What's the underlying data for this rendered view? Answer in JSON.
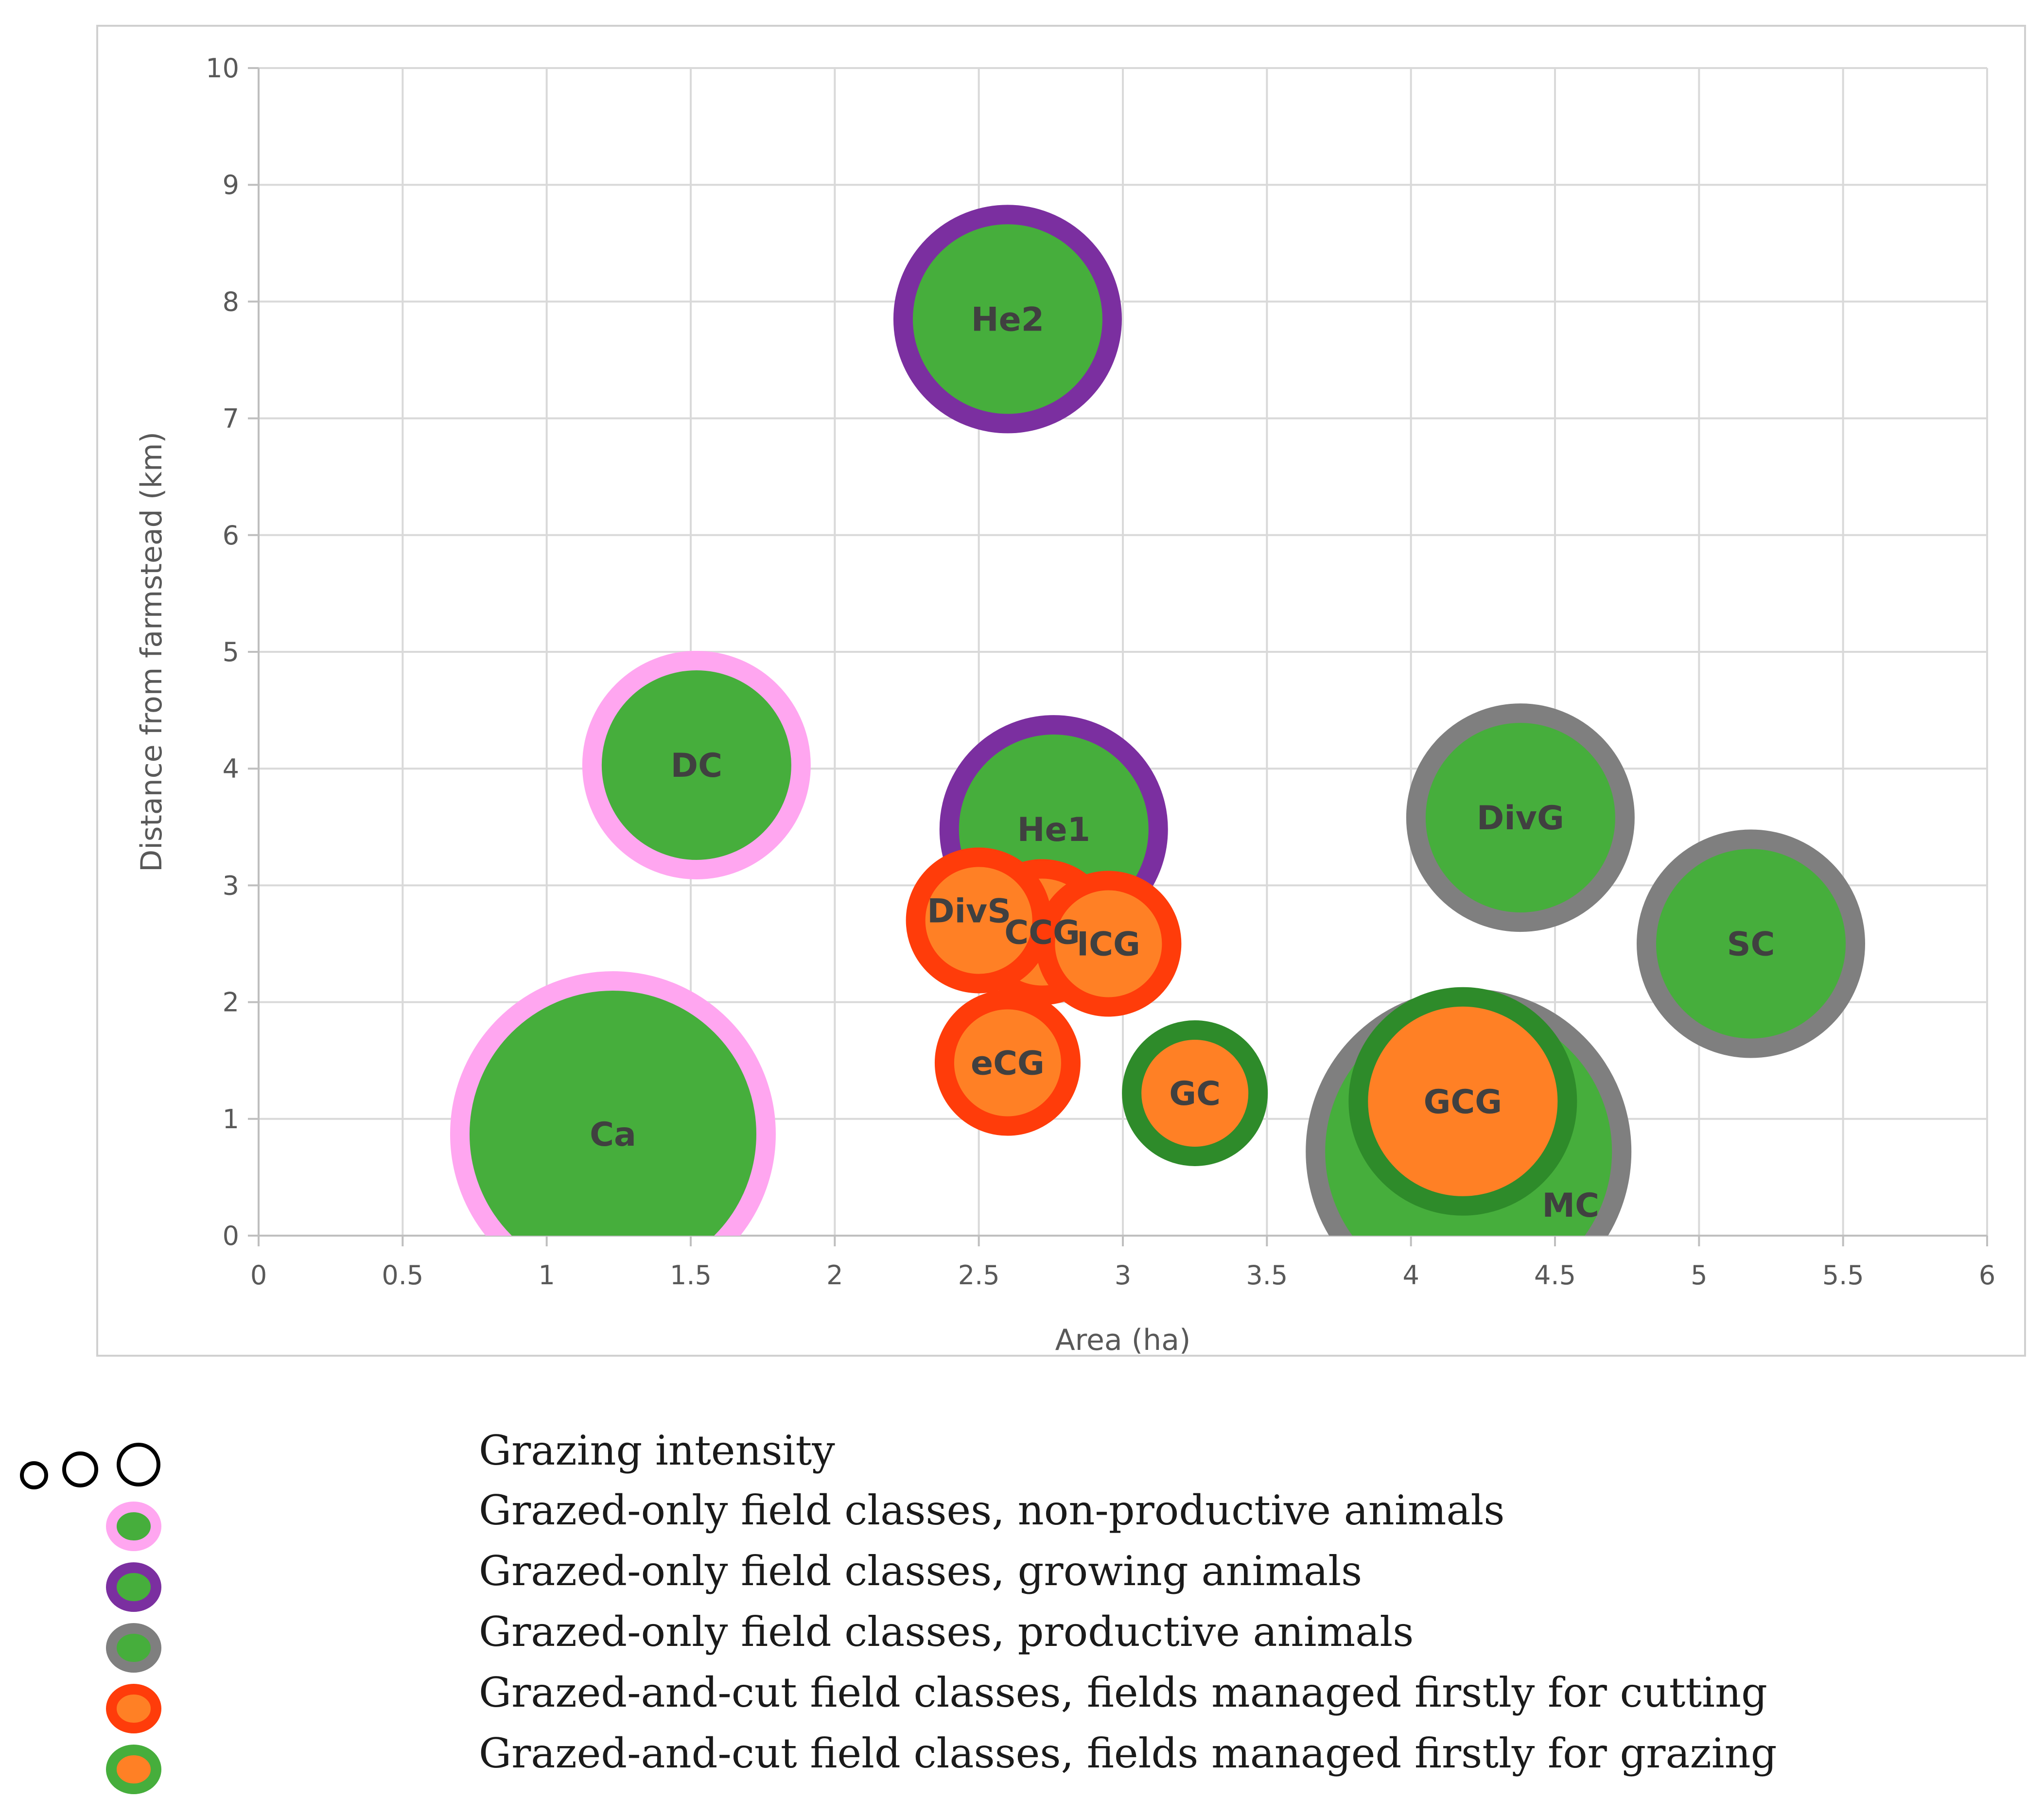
{
  "chart_data": {
    "type": "scatter",
    "title": "",
    "xlabel": "Area (ha)",
    "ylabel": "Distance from farmstead (km)",
    "xlim": [
      0,
      6
    ],
    "ylim": [
      0,
      10
    ],
    "xticks": [
      "0",
      "0.5",
      "1",
      "1.5",
      "2",
      "2.5",
      "3",
      "3.5",
      "4",
      "4.5",
      "5",
      "5.5",
      "6"
    ],
    "yticks": [
      "0",
      "1",
      "2",
      "3",
      "4",
      "5",
      "6",
      "7",
      "8",
      "9",
      "10"
    ],
    "grid": true,
    "colors": {
      "grazed_only_fill": "#46ae3c",
      "cut_fill": "#ff8025",
      "non_productive_ring": "#ffa6f0",
      "growing_ring": "#7b2fa0",
      "productive_ring": "#7f7f7f",
      "cutting_ring": "#ff3c0a",
      "grazing_ring": "#2e8b2a"
    },
    "points": [
      {
        "label": "Ca",
        "x": 1.23,
        "y": 0.87,
        "intensity": 3,
        "class": "non_productive"
      },
      {
        "label": "DC",
        "x": 1.52,
        "y": 4.03,
        "intensity": 2,
        "class": "non_productive"
      },
      {
        "label": "He2",
        "x": 2.6,
        "y": 7.85,
        "intensity": 2,
        "class": "growing"
      },
      {
        "label": "He1",
        "x": 2.76,
        "y": 3.48,
        "intensity": 2,
        "class": "growing"
      },
      {
        "label": "DivG",
        "x": 4.38,
        "y": 3.58,
        "intensity": 2,
        "class": "productive"
      },
      {
        "label": "SC",
        "x": 5.18,
        "y": 2.5,
        "intensity": 2,
        "class": "productive"
      },
      {
        "label": "MC",
        "x": 4.2,
        "y": 0.72,
        "intensity": 3,
        "class": "productive"
      },
      {
        "label": "DivS",
        "x": 2.5,
        "y": 2.7,
        "intensity": 1,
        "class": "cutting"
      },
      {
        "label": "ICG",
        "x": 2.95,
        "y": 2.5,
        "intensity": 1,
        "class": "cutting"
      },
      {
        "label": "CCG",
        "x": 2.72,
        "y": 2.6,
        "intensity": 1,
        "class": "cutting"
      },
      {
        "label": "eCG",
        "x": 2.6,
        "y": 1.48,
        "intensity": 1,
        "class": "cutting"
      },
      {
        "label": "GC",
        "x": 3.25,
        "y": 1.22,
        "intensity": 1,
        "class": "grazing"
      },
      {
        "label": "GCG",
        "x": 4.18,
        "y": 1.15,
        "intensity": 2,
        "class": "grazing"
      }
    ]
  },
  "legend": {
    "items": [
      {
        "key": "intensity",
        "text": "Grazing intensity"
      },
      {
        "key": "non_productive",
        "text": "Grazed-only field classes, non-productive animals"
      },
      {
        "key": "growing",
        "text": "Grazed-only field classes, growing animals"
      },
      {
        "key": "productive",
        "text": "Grazed-only field classes, productive animals"
      },
      {
        "key": "cutting",
        "text": "Grazed-and-cut field classes, fields managed firstly for cutting"
      },
      {
        "key": "grazing",
        "text": "Grazed-and-cut field classes, fields managed firstly for grazing"
      }
    ]
  }
}
